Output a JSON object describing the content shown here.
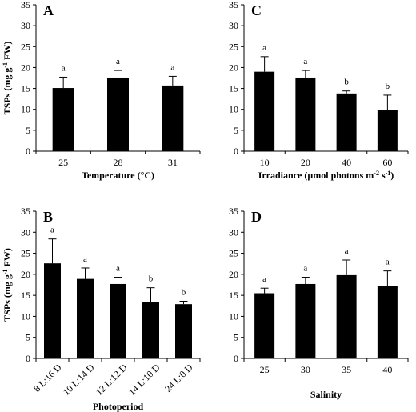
{
  "chart_data": [
    {
      "panel": "A",
      "type": "bar",
      "ylabel_text": "TSPs (mg g",
      "ylabel_sup": "-1",
      "ylabel_tail": " FW)",
      "xlabel": "Temperature (°C)",
      "categories": [
        "25",
        "28",
        "31"
      ],
      "values": [
        15.1,
        17.6,
        15.7
      ],
      "errors": [
        2.6,
        1.7,
        2.2
      ],
      "letters": [
        "a",
        "a",
        "a"
      ],
      "ylim": [
        0,
        35
      ],
      "yticks": [
        "0",
        "5",
        "10",
        "15",
        "20",
        "25",
        "30",
        "35"
      ]
    },
    {
      "panel": "C",
      "type": "bar",
      "xlabel_parts": [
        {
          "t": "Irradiance (µmol photons m",
          "sup": false
        },
        {
          "t": "-2",
          "sup": true
        },
        {
          "t": " s",
          "sup": false
        },
        {
          "t": "-1",
          "sup": true
        },
        {
          "t": ")",
          "sup": false
        }
      ],
      "categories": [
        "10",
        "20",
        "40",
        "60"
      ],
      "values": [
        19.0,
        17.6,
        13.8,
        9.9
      ],
      "errors": [
        3.6,
        1.7,
        0.6,
        3.5
      ],
      "letters": [
        "a",
        "a",
        "b",
        "b"
      ],
      "ylim": [
        0,
        35
      ],
      "yticks": [
        "0",
        "5",
        "10",
        "15",
        "20",
        "25",
        "30",
        "35"
      ]
    },
    {
      "panel": "B",
      "type": "bar",
      "ylabel_text": "TSPs (mg g",
      "ylabel_sup": "-1",
      "ylabel_tail": " FW)",
      "xlabel": "Photoperiod",
      "categories": [
        "8 L:16 D",
        "10 L:14 D",
        "12 L:12 D",
        "14 L:10 D",
        "24 L:0 D"
      ],
      "values": [
        22.6,
        18.9,
        17.7,
        13.4,
        12.9
      ],
      "errors": [
        5.8,
        2.6,
        1.6,
        3.4,
        0.7
      ],
      "letters": [
        "a",
        "a",
        "a",
        "b",
        "b"
      ],
      "ylim": [
        0,
        35
      ],
      "yticks": [
        "0",
        "5",
        "10",
        "15",
        "20",
        "25",
        "30",
        "35"
      ]
    },
    {
      "panel": "D",
      "type": "bar",
      "xlabel": "Salinity",
      "categories": [
        "25",
        "30",
        "35",
        "40"
      ],
      "values": [
        15.5,
        17.7,
        19.8,
        17.2
      ],
      "errors": [
        1.2,
        1.6,
        3.6,
        3.6
      ],
      "letters": [
        "a",
        "a",
        "a",
        "a"
      ],
      "ylim": [
        0,
        35
      ],
      "yticks": [
        "0",
        "5",
        "10",
        "15",
        "20",
        "25",
        "30",
        "35"
      ]
    }
  ]
}
